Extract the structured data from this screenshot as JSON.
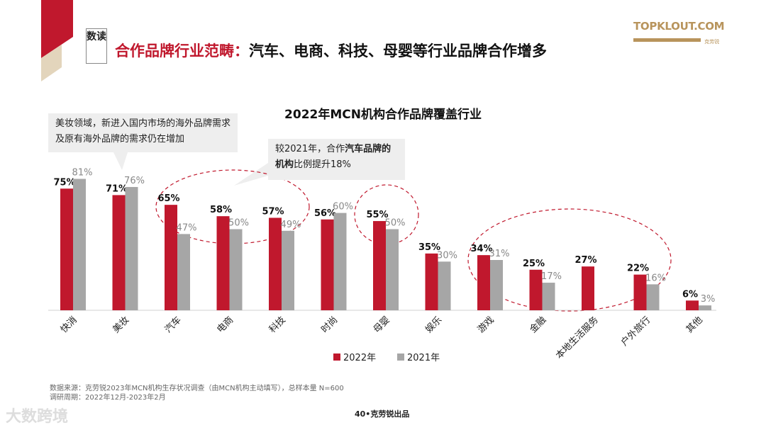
{
  "header": {
    "badge": "数读",
    "title_red": "合作品牌行业范畴：",
    "title_black": "汽车、电商、科技、母婴等行业品牌合作增多"
  },
  "logo": {
    "name": "TOPKLOUT.COM",
    "sub": "克劳锐"
  },
  "callouts": [
    {
      "text": "美妆领域，新进入国内市场的海外品牌需求及原有海外品牌的需求仍在增加"
    },
    {
      "text_pre": "较2021年，合作",
      "text_bold1": "汽车品牌的",
      "text_bold2": "机构",
      "text_post": "比例提升18%"
    }
  ],
  "footer": {
    "source": "数据来源：克劳锐2023年MCN机构生存状况调查（由MCN机构主动填写），总样本量 N=600",
    "period": "调研周期：2022年12月-2023年2月",
    "page": "40•克劳锐出品",
    "watermark": "大数跨境"
  },
  "chart_data": {
    "type": "bar",
    "title": "2022年MCN机构合作品牌覆盖行业",
    "categories": [
      "快消",
      "美妆",
      "汽车",
      "电商",
      "科技",
      "时尚",
      "母婴",
      "娱乐",
      "游戏",
      "金融",
      "本地生活服务",
      "户外旅行",
      "其他"
    ],
    "series": [
      {
        "name": "2022年",
        "color": "#c0182d",
        "values": [
          75,
          71,
          65,
          58,
          57,
          56,
          55,
          35,
          34,
          25,
          27,
          22,
          6
        ]
      },
      {
        "name": "2021年",
        "color": "#a6a6a6",
        "values": [
          81,
          76,
          47,
          50,
          49,
          60,
          50,
          30,
          31,
          17,
          null,
          16,
          3
        ]
      }
    ],
    "ylim": [
      0,
      100
    ],
    "grid": false,
    "legend": "bottom",
    "value_suffix": "%"
  }
}
